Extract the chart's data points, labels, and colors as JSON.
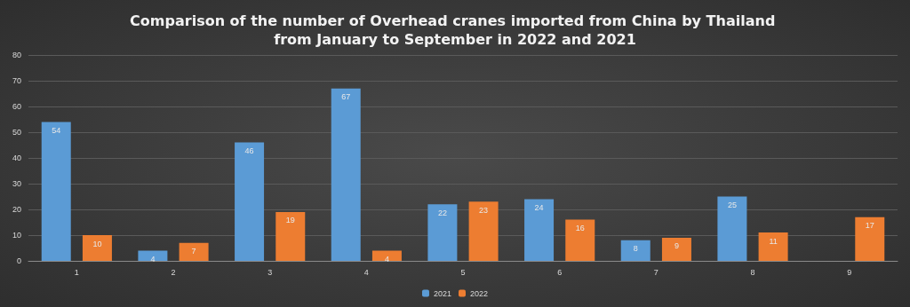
{
  "chart_data": {
    "type": "bar",
    "title": "Comparison of the number of Overhead cranes imported from China by Thailand from January to September in 2022 and 2021",
    "categories": [
      "1",
      "2",
      "3",
      "4",
      "5",
      "6",
      "7",
      "8",
      "9"
    ],
    "series": [
      {
        "name": "2021",
        "color": "#5b9bd5",
        "values": [
          54,
          4,
          46,
          67,
          22,
          24,
          8,
          25,
          null
        ]
      },
      {
        "name": "2022",
        "color": "#ed7d31",
        "values": [
          10,
          7,
          19,
          4,
          23,
          16,
          9,
          11,
          17
        ]
      }
    ],
    "ylim": [
      0,
      80
    ],
    "yticks": [
      0,
      10,
      20,
      30,
      40,
      50,
      60,
      70,
      80
    ],
    "grid": "y",
    "legend": "bottom",
    "data_labels": true
  }
}
